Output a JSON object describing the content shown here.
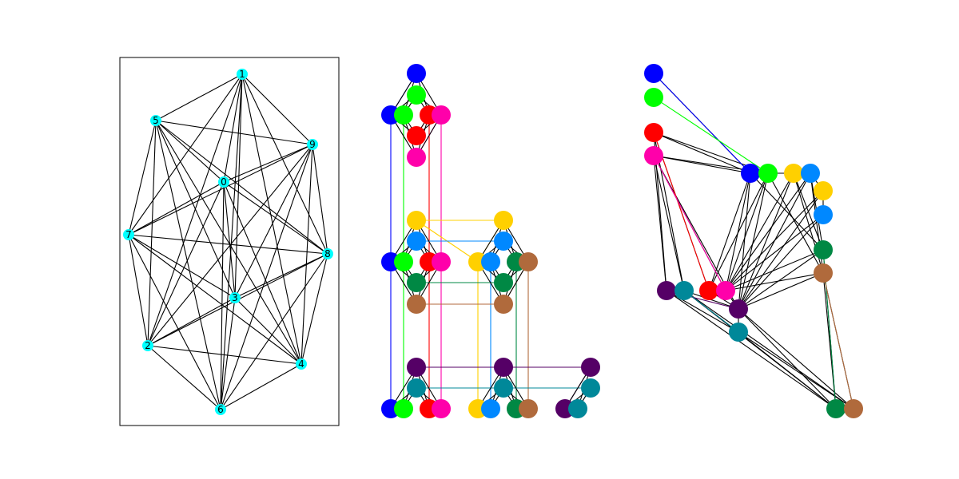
{
  "panels": {
    "complete_graph": {
      "node_color": "#00ffff",
      "edge_color": "#000000",
      "nodes": [
        {
          "id": "0",
          "label": "0"
        },
        {
          "id": "1",
          "label": "1"
        },
        {
          "id": "2",
          "label": "2"
        },
        {
          "id": "3",
          "label": "3"
        },
        {
          "id": "4",
          "label": "4"
        },
        {
          "id": "5",
          "label": "5"
        },
        {
          "id": "6",
          "label": "6"
        },
        {
          "id": "7",
          "label": "7"
        },
        {
          "id": "8",
          "label": "8"
        },
        {
          "id": "9",
          "label": "9"
        }
      ],
      "edges": "all-pairs"
    },
    "layered_layout": {
      "edge_color": "#000000",
      "palette": {
        "blue": "#0000ff",
        "green": "#00ff00",
        "red": "#ff0000",
        "magenta": "#ff00aa",
        "yellow": "#ffd000",
        "sky": "#0088ff",
        "darkgreen": "#008844",
        "brown": "#b06a3c",
        "purple": "#550066",
        "teal": "#008899"
      }
    },
    "embedded_layout": {
      "edge_color": "#000000"
    }
  }
}
